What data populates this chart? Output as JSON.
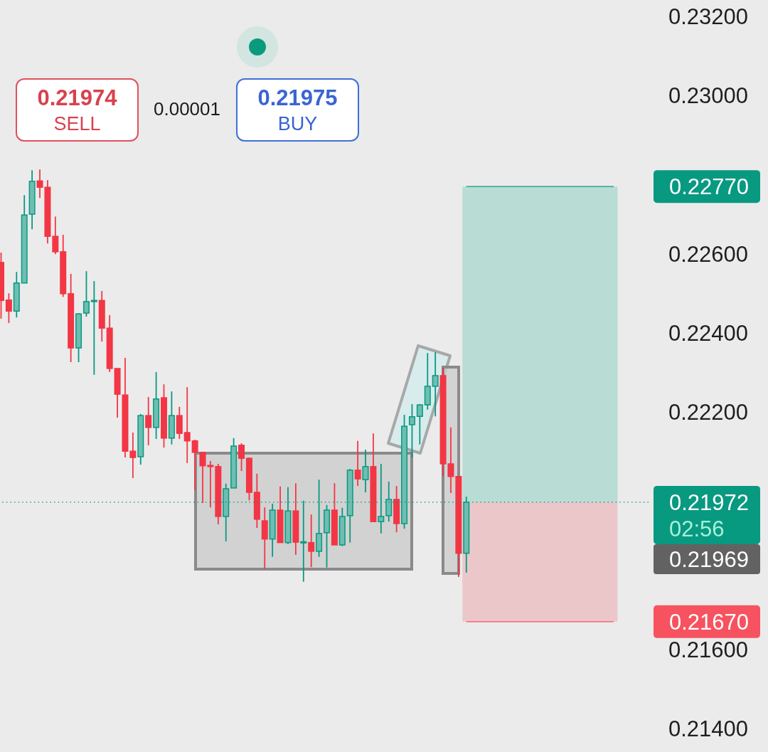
{
  "chart_data": {
    "type": "candlestick",
    "categories": [
      null,
      null,
      null,
      null,
      null,
      null,
      null,
      null,
      null,
      null,
      null,
      null,
      null,
      null,
      null,
      null,
      null,
      null,
      null,
      null,
      null,
      null,
      null,
      null,
      null,
      null,
      null,
      null,
      null,
      null,
      null,
      null,
      null,
      null,
      null,
      null,
      null,
      null,
      null,
      null,
      null,
      null,
      null,
      null,
      null,
      null,
      null,
      null,
      null,
      null,
      null,
      null,
      null,
      null,
      null,
      null,
      null,
      null,
      null,
      null,
      null,
      null,
      null,
      null,
      null,
      null,
      null,
      null,
      null,
      null,
      null,
      null,
      null,
      null,
      null,
      null,
      null,
      null,
      null,
      null,
      null,
      null,
      null,
      null
    ],
    "ohlc": [
      [
        0.22578,
        0.22603,
        0.22436,
        0.22482
      ],
      [
        0.22483,
        0.225,
        0.22425,
        0.22455
      ],
      [
        0.22455,
        0.22554,
        0.22439,
        0.22526
      ],
      [
        0.22526,
        0.22748,
        0.22526,
        0.22698
      ],
      [
        0.227,
        0.22811,
        0.22662,
        0.22783
      ],
      [
        0.22784,
        0.22813,
        0.22741,
        0.22768
      ],
      [
        0.22768,
        0.22786,
        0.22626,
        0.22644
      ],
      [
        0.22644,
        0.22694,
        0.22599,
        0.22605
      ],
      [
        0.22605,
        0.22648,
        0.22491,
        0.22499
      ],
      [
        0.22499,
        0.22549,
        0.22326,
        0.22362
      ],
      [
        0.22362,
        0.2245,
        0.22326,
        0.22448
      ],
      [
        0.2245,
        0.22556,
        0.22441,
        0.22479
      ],
      [
        0.22481,
        0.22531,
        0.22294,
        0.22482
      ],
      [
        0.22482,
        0.22506,
        0.22378,
        0.22412
      ],
      [
        0.22412,
        0.22445,
        0.22301,
        0.2231
      ],
      [
        0.2231,
        0.2231,
        0.22186,
        0.22245
      ],
      [
        0.22243,
        0.22337,
        0.22085,
        0.22101
      ],
      [
        0.22101,
        0.22148,
        0.22033,
        0.22085
      ],
      [
        0.22087,
        0.22195,
        0.22067,
        0.22191
      ],
      [
        0.22191,
        0.22238,
        0.22116,
        0.22161
      ],
      [
        0.22161,
        0.22301,
        0.22132,
        0.22233
      ],
      [
        0.22236,
        0.2227,
        0.2211,
        0.22134
      ],
      [
        0.22134,
        0.22252,
        0.22118,
        0.22191
      ],
      [
        0.22191,
        0.22213,
        0.22132,
        0.22146
      ],
      [
        0.22148,
        0.22263,
        0.22071,
        0.22127
      ],
      [
        0.22127,
        0.2213,
        0.22003,
        0.22098
      ],
      [
        0.22098,
        0.22098,
        0.2197,
        0.22064
      ],
      [
        0.22065,
        0.22076,
        0.21959,
        0.22064
      ],
      [
        0.22062,
        0.22069,
        0.21916,
        0.21936
      ],
      [
        0.21936,
        0.22019,
        0.21873,
        0.22006
      ],
      [
        0.22008,
        0.22134,
        0.22008,
        0.22114
      ],
      [
        0.22116,
        0.22121,
        0.22051,
        0.22083
      ],
      [
        0.22083,
        0.22085,
        0.21977,
        0.21997
      ],
      [
        0.21997,
        0.22044,
        0.21907,
        0.21929
      ],
      [
        0.21925,
        0.21959,
        0.21803,
        0.21879
      ],
      [
        0.21879,
        0.21968,
        0.21834,
        0.21952
      ],
      [
        0.21952,
        0.22012,
        0.2187,
        0.2187
      ],
      [
        0.2187,
        0.2201,
        0.21866,
        0.2195
      ],
      [
        0.2195,
        0.2202,
        0.21839,
        0.21871
      ],
      [
        0.21871,
        0.21976,
        0.21771,
        0.21872
      ],
      [
        0.2187,
        0.21941,
        0.21808,
        0.21848
      ],
      [
        0.21848,
        0.22029,
        0.21834,
        0.21893
      ],
      [
        0.21895,
        0.21965,
        0.21807,
        0.21952
      ],
      [
        0.21952,
        0.2202,
        0.21864,
        0.21864
      ],
      [
        0.21864,
        0.21958,
        0.21861,
        0.21936
      ],
      [
        0.21938,
        0.22056,
        0.2187,
        0.22053
      ],
      [
        0.22053,
        0.22127,
        0.22013,
        0.22031
      ],
      [
        0.22029,
        0.22105,
        0.21997,
        0.22062
      ],
      [
        0.22062,
        0.22146,
        0.21923,
        0.21923
      ],
      [
        0.21923,
        0.22069,
        0.21893,
        0.21936
      ],
      [
        0.21938,
        0.22024,
        0.21923,
        0.21979
      ],
      [
        0.21979,
        0.22013,
        0.21896,
        0.21918
      ],
      [
        0.21918,
        0.22193,
        0.21905,
        0.22164
      ],
      [
        0.22168,
        0.2222,
        0.22085,
        0.22188
      ],
      [
        0.22189,
        0.2222,
        0.22118,
        0.22218
      ],
      [
        0.22218,
        0.22349,
        0.22206,
        0.22265
      ],
      [
        0.22265,
        0.22351,
        0.22189,
        0.22292
      ],
      [
        0.22292,
        0.22312,
        0.22038,
        0.22069
      ],
      [
        0.22069,
        0.22161,
        0.21995,
        0.22037
      ],
      [
        0.22037,
        0.22037,
        0.21783,
        0.21843
      ],
      [
        0.21843,
        0.21986,
        0.21794,
        0.21972
      ],
      null,
      null,
      null,
      null,
      null,
      null,
      null,
      null,
      null,
      null,
      null,
      null,
      null,
      null,
      null,
      null,
      null,
      null,
      null,
      null,
      null,
      null,
      null
    ],
    "colors": [
      "#f23645",
      "#f23645",
      "#089981",
      "#089981",
      "#089981",
      "#f23645",
      "#f23645",
      "#f23645",
      "#f23645",
      "#f23645",
      "#089981",
      "#089981",
      "#089981",
      "#f23645",
      "#f23645",
      "#f23645",
      "#f23645",
      "#f23645",
      "#089981",
      "#f23645",
      "#089981",
      "#f23645",
      "#089981",
      "#f23645",
      "#f23645",
      "#f23645",
      "#f23645",
      "#f23645",
      "#f23645",
      "#089981",
      "#089981",
      "#f23645",
      "#f23645",
      "#f23645",
      "#f23645",
      "#089981",
      "#f23645",
      "#089981",
      "#f23645",
      "#089981",
      "#f23645",
      "#089981",
      "#089981",
      "#f23645",
      "#089981",
      "#089981",
      "#f23645",
      "#089981",
      "#f23645",
      "#089981",
      "#089981",
      "#f23645",
      "#089981",
      "#089981",
      "#089981",
      "#089981",
      "#089981",
      "#f23645",
      "#f23645",
      "#f23645",
      "#089981",
      null,
      null,
      null,
      null,
      null,
      null,
      null,
      null,
      null,
      null,
      null,
      null,
      null,
      null,
      null,
      null,
      null,
      null,
      null,
      null,
      null,
      null,
      null
    ],
    "ylim": [
      0.214,
      0.232
    ],
    "yticks": [
      {
        "value": 0.214,
        "label": "0.21400"
      },
      {
        "value": 0.216,
        "label": "0.21600"
      },
      {
        "value": 0.222,
        "label": "0.22200"
      },
      {
        "value": 0.224,
        "label": "0.22400"
      },
      {
        "value": 0.226,
        "label": "0.22600"
      },
      {
        "value": 0.23,
        "label": "0.23000"
      },
      {
        "value": 0.232,
        "label": "0.23200"
      }
    ],
    "tick_labels": "y",
    "bands": [
      {
        "axis": "y",
        "from": 0.21972,
        "to": 0.2277,
        "color": "#b9dcd5"
      },
      {
        "axis": "y",
        "from": 0.2167,
        "to": 0.21972,
        "color": "#ecc7ca"
      }
    ],
    "ref_lines": [
      {
        "axis": "y",
        "value": 0.2277,
        "label": "0.22770",
        "color": "#089981",
        "line_style": "solid"
      },
      {
        "axis": "y",
        "value": 0.21972,
        "label": "0.21972",
        "color": "#089981",
        "line_style": "dotted"
      },
      {
        "axis": "y",
        "value": 0.2167,
        "label": "0.21670",
        "color": "#f7525f",
        "line_style": "solid"
      }
    ],
    "annotations": [
      "0.21974",
      "SELL",
      "0.00001",
      "0.21975",
      "BUY",
      "02:56",
      "0.21969"
    ]
  }
}
